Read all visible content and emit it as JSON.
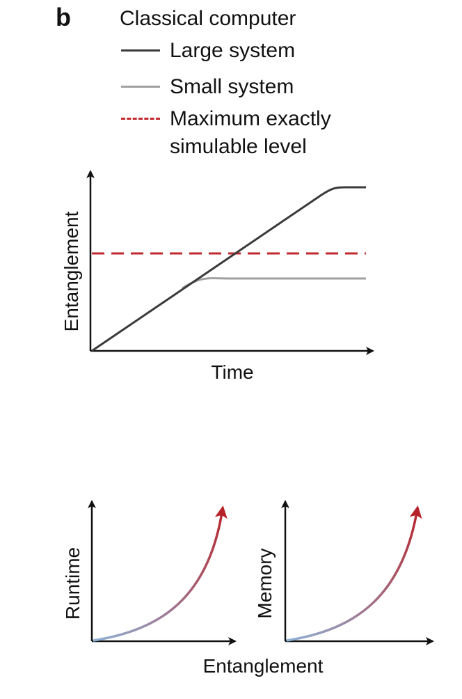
{
  "panel_label": "b",
  "legend": {
    "title": "Classical computer",
    "items": [
      {
        "label": "Large system",
        "color": "#3a3a3a",
        "style": "solid"
      },
      {
        "label": "Small system",
        "color": "#a0a0a0",
        "style": "solid"
      },
      {
        "label_line1": "Maximum exactly",
        "label_line2": "simulable level",
        "color": "#c0282e",
        "style": "dashed"
      }
    ]
  },
  "top_chart": {
    "xlabel": "Time",
    "ylabel": "Entanglement"
  },
  "bottom_charts": {
    "left_ylabel": "Runtime",
    "right_ylabel": "Memory",
    "shared_xlabel": "Entanglement"
  },
  "colors": {
    "axis": "#111111",
    "curve_start": "#8fb2d6",
    "curve_end": "#b8222a"
  }
}
